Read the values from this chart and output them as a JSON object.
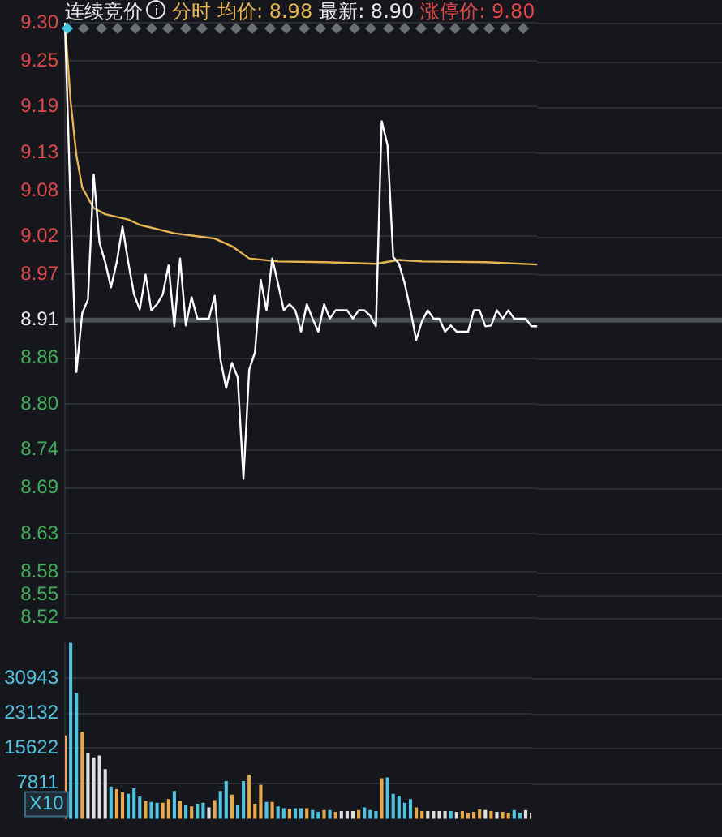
{
  "chart_data": [
    {
      "type": "line",
      "title": "连续竞价",
      "annotations": [
        "分时",
        "均价: 8.98",
        "最新: 8.90",
        "涨停价: 9.80"
      ],
      "categories": [
        null,
        null,
        null,
        null,
        null,
        null,
        null,
        null,
        null,
        null,
        null,
        null,
        null,
        null,
        null,
        null,
        null,
        null,
        null,
        null,
        null,
        null,
        null,
        null,
        null,
        null,
        null,
        null,
        null,
        null,
        null,
        null,
        null,
        null,
        null,
        null,
        null,
        null,
        null,
        null,
        null,
        null,
        null,
        null,
        null,
        null,
        null,
        null,
        null,
        null,
        null,
        null,
        null,
        null,
        null,
        null,
        null,
        null,
        null,
        null,
        null,
        null,
        null,
        null,
        null,
        null,
        null,
        null,
        null,
        null,
        null,
        null,
        null,
        null,
        null,
        null,
        null,
        null,
        null,
        null,
        null,
        null,
        null
      ],
      "series": [
        {
          "color": "#ffffff",
          "values": [
            9.3,
            9.056,
            8.842,
            8.919,
            8.937,
            9.101,
            9.012,
            8.986,
            8.953,
            8.986,
            9.033,
            8.986,
            8.944,
            8.924,
            8.97,
            8.923,
            8.931,
            8.944,
            8.982,
            8.902,
            8.991,
            8.903,
            8.94,
            8.912,
            8.912,
            8.912,
            8.942,
            8.859,
            8.821,
            8.854,
            8.835,
            8.702,
            8.845,
            8.868,
            8.963,
            8.923,
            8.991,
            8.958,
            8.923,
            8.931,
            8.923,
            8.895,
            8.931,
            8.912,
            8.895,
            8.931,
            8.912,
            8.923,
            8.923,
            8.923,
            8.912,
            8.923,
            8.923,
            8.916,
            8.902,
            9.171,
            9.14,
            8.993,
            8.984,
            8.958,
            8.923,
            8.884,
            8.909,
            8.923,
            8.912,
            8.912,
            8.895,
            8.903,
            8.895,
            8.895,
            8.895,
            8.923,
            8.923,
            8.902,
            8.903,
            8.923,
            8.912,
            8.923,
            8.912,
            8.912,
            8.912,
            8.902,
            8.902
          ]
        },
        {
          "color": "#e6b450",
          "values": [
            9.3,
            9.196,
            9.126,
            9.084,
            null,
            9.057,
            null,
            9.049,
            null,
            null,
            null,
            9.042,
            null,
            9.035,
            null,
            null,
            null,
            null,
            null,
            9.024,
            null,
            null,
            null,
            null,
            null,
            null,
            9.017,
            null,
            null,
            9.007,
            null,
            null,
            8.991,
            null,
            null,
            null,
            null,
            8.987,
            null,
            null,
            null,
            null,
            null,
            null,
            null,
            8.986,
            null,
            null,
            null,
            null,
            null,
            null,
            null,
            null,
            8.984,
            null,
            null,
            null,
            8.989,
            null,
            null,
            null,
            8.987,
            null,
            null,
            null,
            null,
            null,
            null,
            null,
            null,
            null,
            null,
            8.986,
            null,
            null,
            null,
            null,
            null,
            null,
            null,
            null,
            8.983
          ]
        }
      ],
      "ylim": [
        8.52,
        9.3
      ],
      "yticks": [
        {
          "value": 9.3,
          "label": "9.30"
        },
        9.25,
        9.19,
        9.13,
        9.08,
        9.02,
        8.97,
        8.91,
        8.86,
        {
          "value": 8.8,
          "label": "8.80"
        },
        8.74,
        8.69,
        8.63,
        8.58,
        8.55,
        8.52
      ],
      "ref_lines": [
        {
          "axis": "y",
          "value": 8.91,
          "color": "#4a4e55"
        }
      ],
      "grid": "y",
      "legend": false,
      "marker": "none",
      "line_style": "solid",
      "tick_labels": "y"
    },
    {
      "type": "bar",
      "ylabel": "X10",
      "categories": [
        null,
        null,
        null,
        null,
        null,
        null,
        null,
        null,
        null,
        null,
        null,
        null,
        null,
        null,
        null,
        null,
        null,
        null,
        null,
        null,
        null,
        null,
        null,
        null,
        null,
        null,
        null,
        null,
        null,
        null,
        null,
        null,
        null,
        null,
        null,
        null,
        null,
        null,
        null,
        null,
        null,
        null,
        null,
        null,
        null,
        null,
        null,
        null,
        null,
        null,
        null,
        null,
        null,
        null,
        null,
        null,
        null,
        null,
        null,
        null,
        null,
        null,
        null,
        null,
        null,
        null,
        null,
        null,
        null,
        null,
        null,
        null,
        null,
        null,
        null,
        null,
        null,
        null,
        null,
        null,
        null,
        null
      ],
      "values": [
        18200,
        38600,
        27500,
        19000,
        14400,
        13400,
        13800,
        10800,
        7000,
        6400,
        5800,
        5400,
        6600,
        4800,
        3800,
        3600,
        3400,
        3400,
        4200,
        6000,
        3800,
        3000,
        2600,
        3200,
        3400,
        2400,
        4000,
        6000,
        8200,
        5200,
        3000,
        8200,
        9600,
        3200,
        7400,
        3600,
        3600,
        2600,
        2200,
        2000,
        2200,
        2200,
        2200,
        1800,
        1400,
        1800,
        1800,
        1400,
        1600,
        1600,
        1600,
        1800,
        2400,
        1800,
        1600,
        8800,
        9000,
        5400,
        5000,
        3400,
        4200,
        2400,
        1600,
        1600,
        1600,
        1600,
        1600,
        1600,
        1400,
        1600,
        1200,
        1400,
        2000,
        1800,
        1600,
        1400,
        1400,
        1200,
        1800,
        1200,
        1800,
        1200
      ],
      "colors": [
        "#e8a94a",
        "#4fc3e0",
        "#4fc3e0",
        "#e8a94a",
        "#e0e0e0",
        "#e0e0e0",
        "#e0e0e0",
        "#e0e0e0",
        "#4fc3e0",
        "#e8a94a",
        "#e8a94a",
        "#4fc3e0",
        "#4fc3e0",
        "#4fc3e0",
        "#e8a94a",
        "#4fc3e0",
        "#4fc3e0",
        "#e8a94a",
        "#e8a94a",
        "#4fc3e0",
        "#e8a94a",
        "#4fc3e0",
        "#e8a94a",
        "#4fc3e0",
        "#4fc3e0",
        "#e0e0e0",
        "#e8a94a",
        "#4fc3e0",
        "#4fc3e0",
        "#e8a94a",
        "#4fc3e0",
        "#4fc3e0",
        "#e8a94a",
        "#e8a94a",
        "#e8a94a",
        "#4fc3e0",
        "#e8a94a",
        "#4fc3e0",
        "#4fc3e0",
        "#e8a94a",
        "#4fc3e0",
        "#4fc3e0",
        "#e8a94a",
        "#4fc3e0",
        "#4fc3e0",
        "#e8a94a",
        "#4fc3e0",
        "#e8a94a",
        "#e0e0e0",
        "#e0e0e0",
        "#e0e0e0",
        "#e8a94a",
        "#4fc3e0",
        "#4fc3e0",
        "#4fc3e0",
        "#e8a94a",
        "#4fc3e0",
        "#4fc3e0",
        "#4fc3e0",
        "#4fc3e0",
        "#4fc3e0",
        "#e8a94a",
        "#e8a94a",
        "#e0e0e0",
        "#e0e0e0",
        "#e0e0e0",
        "#e0e0e0",
        "#4fc3e0",
        "#e0e0e0",
        "#e8a94a",
        "#e8a94a",
        "#e8a94a",
        "#e8a94a",
        "#e0e0e0",
        "#e8a94a",
        "#e0e0e0",
        "#e8a94a",
        "#e8a94a",
        "#4fc3e0",
        "#4fc3e0",
        "#e0e0e0",
        "#e0e0e0"
      ],
      "ylim": [
        0,
        38700
      ],
      "yticks": [
        7811,
        15622,
        23132,
        30943
      ],
      "grid": "y",
      "legend": false,
      "tick_labels": "y"
    }
  ]
}
